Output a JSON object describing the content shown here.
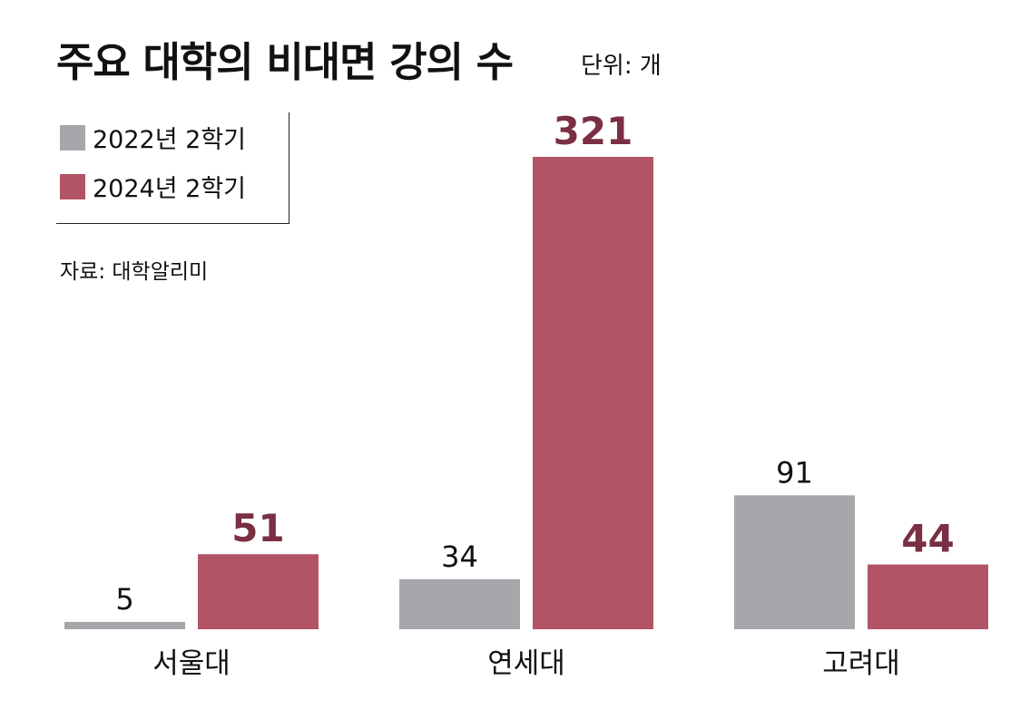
{
  "chart_data": {
    "type": "bar",
    "title": "주요 대학의 비대면 강의 수",
    "unit_note": "단위: 개",
    "source": "자료: 대학알리미",
    "categories": [
      "서울대",
      "연세대",
      "고려대"
    ],
    "series": [
      {
        "name": "2022년 2학기",
        "values": [
          5,
          34,
          91
        ],
        "color": "#a6a7ab",
        "label_color": "#111111",
        "label_bold": false
      },
      {
        "name": "2024년 2학기",
        "values": [
          51,
          321,
          44
        ],
        "color": "#b35466",
        "label_color": "#7a2f42",
        "label_bold": true
      }
    ],
    "ylim": [
      0,
      321
    ],
    "grid": false,
    "legend_position": "top-left"
  }
}
